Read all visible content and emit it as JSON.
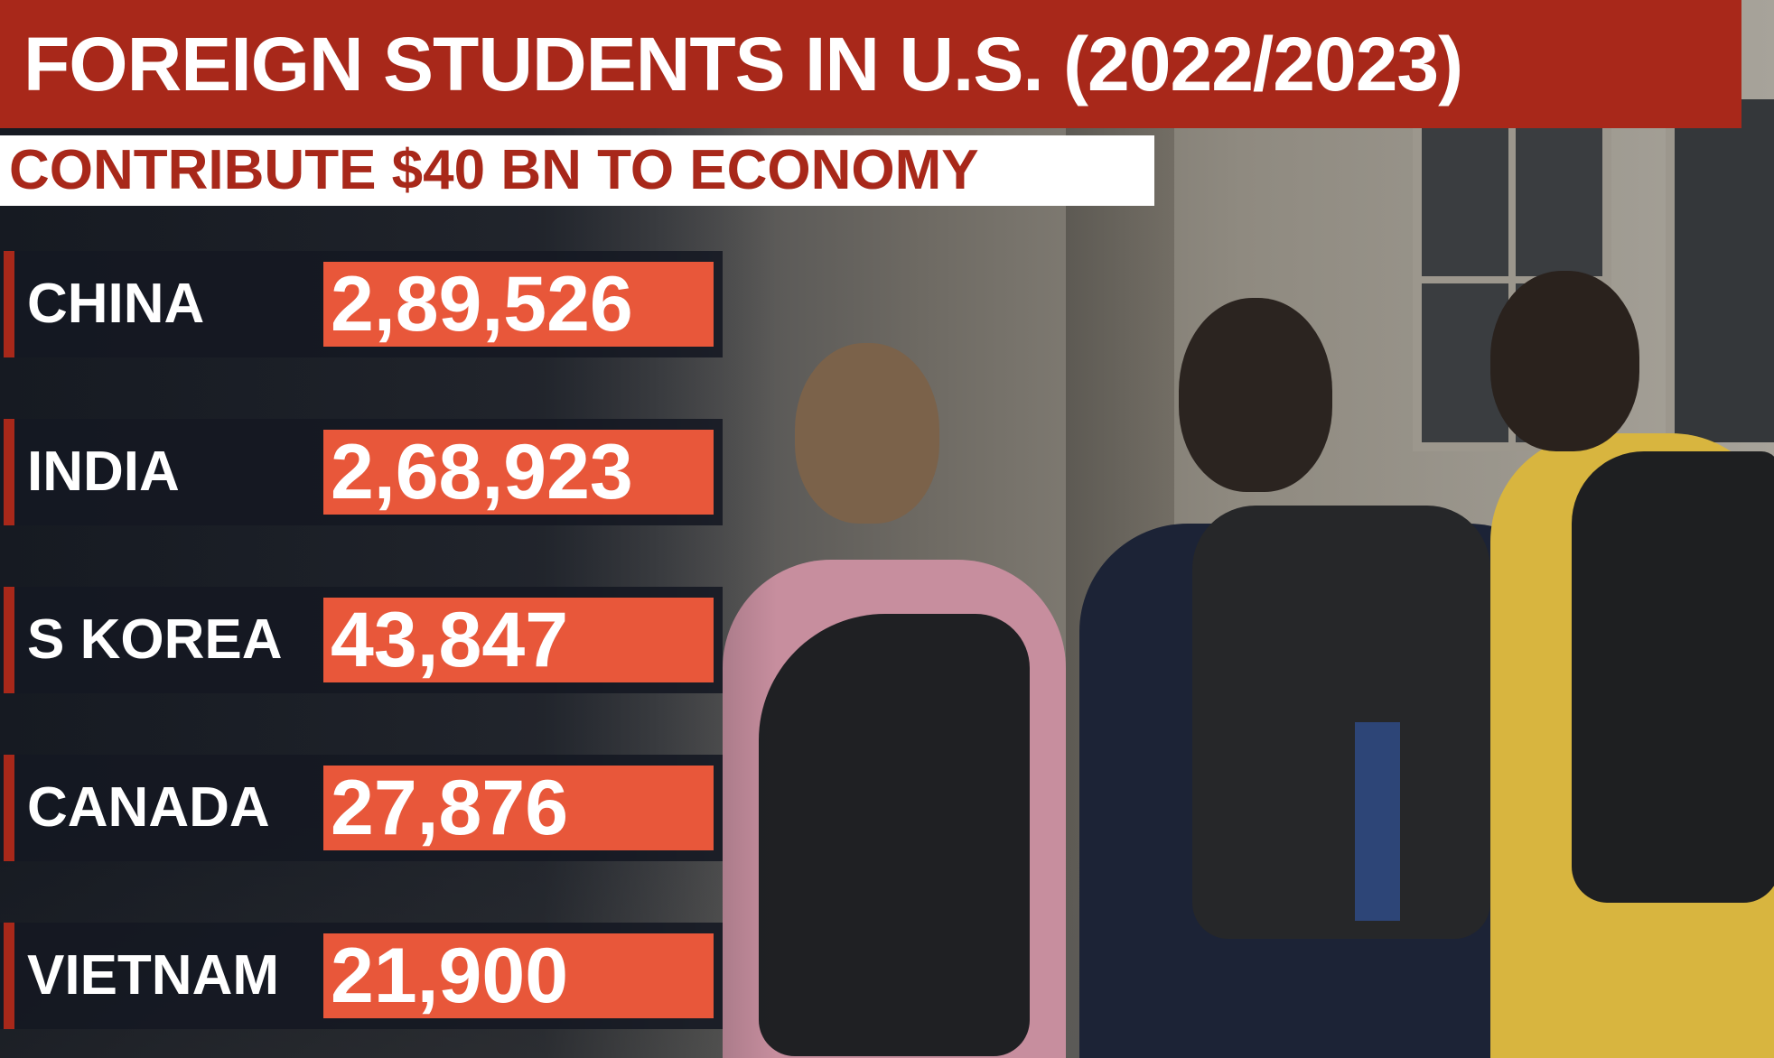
{
  "colors": {
    "title_bg": "#a8281a",
    "subtitle_bg": "#ffffff",
    "subtitle_text": "#a8281a",
    "row_bg": "#141822",
    "value_bg": "#e8573a",
    "accent": "#a8281a"
  },
  "header": {
    "title": "FOREIGN STUDENTS IN U.S. (2022/2023)",
    "subtitle": "CONTRIBUTE $40 BN TO ECONOMY"
  },
  "chart_data": {
    "type": "table",
    "title": "FOREIGN STUDENTS IN U.S. (2022/2023)",
    "subtitle": "CONTRIBUTE $40 BN TO ECONOMY",
    "categories": [
      "CHINA",
      "INDIA",
      "S KOREA",
      "CANADA",
      "VIETNAM"
    ],
    "values": [
      289526,
      268923,
      43847,
      27876,
      21900
    ],
    "value_labels": [
      "2,89,526",
      "2,68,923",
      "43,847",
      "27,876",
      "21,900"
    ]
  }
}
